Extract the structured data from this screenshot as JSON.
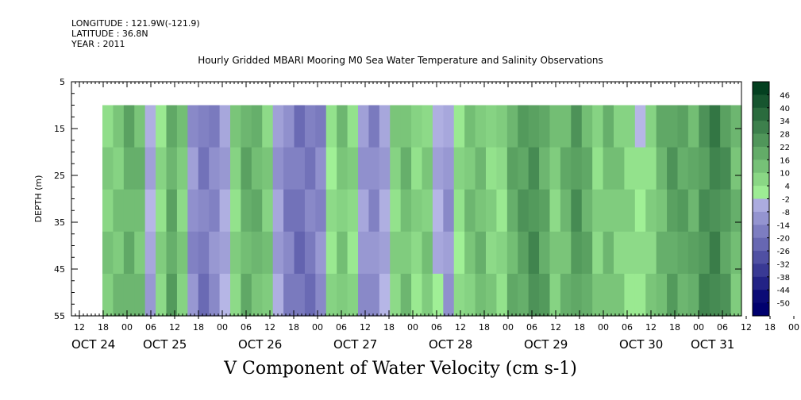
{
  "header": {
    "longitude": "LONGITUDE : 121.9W(-121.9)",
    "latitude": "LATITUDE : 36.8N",
    "year": "YEAR : 2011"
  },
  "chart_data": {
    "type": "heatmap",
    "title": "Hourly Gridded MBARI Mooring M0 Sea Water Temperature and Salinity Observations",
    "xlabel": "V Component of Water Velocity (cm s-1)",
    "ylabel": "DEPTH (m)",
    "ylim": [
      5,
      55
    ],
    "y_reversed": true,
    "y_ticks": [
      5,
      15,
      25,
      35,
      45,
      55
    ],
    "hour_ticks": [
      "12",
      "18",
      "00",
      "06",
      "12",
      "18",
      "00",
      "06",
      "12",
      "18",
      "00",
      "06",
      "12",
      "18",
      "00",
      "06",
      "12",
      "18",
      "00",
      "06",
      "12",
      "18",
      "00",
      "06",
      "12",
      "18",
      "00",
      "06",
      "12",
      "18",
      "00",
      "06"
    ],
    "day_labels": [
      "OCT 24",
      "OCT 25",
      "OCT 26",
      "OCT 27",
      "OCT 28",
      "OCT 29",
      "OCT 30",
      "OCT 31"
    ],
    "data_depth_range": [
      10,
      55
    ],
    "colorbar": {
      "range": [
        -50,
        50
      ],
      "step": 6,
      "labels": [
        "46",
        "40",
        "34",
        "28",
        "22",
        "16",
        "10",
        "4",
        "-2",
        "-8",
        "-14",
        "-20",
        "-26",
        "-32",
        "-38",
        "-44",
        "-50"
      ]
    },
    "v_profile": {
      "columns": 60,
      "values": [
        9,
        12,
        18,
        14,
        -6,
        6,
        20,
        10,
        -12,
        -18,
        -14,
        -6,
        8,
        18,
        16,
        10,
        -8,
        -16,
        -20,
        -18,
        -14,
        4,
        12,
        6,
        -10,
        -14,
        -6,
        8,
        14,
        6,
        10,
        -4,
        -10,
        4,
        12,
        14,
        8,
        6,
        18,
        22,
        26,
        20,
        10,
        16,
        24,
        18,
        8,
        14,
        10,
        6,
        2,
        8,
        16,
        22,
        20,
        18,
        26,
        30,
        24,
        14
      ]
    }
  }
}
